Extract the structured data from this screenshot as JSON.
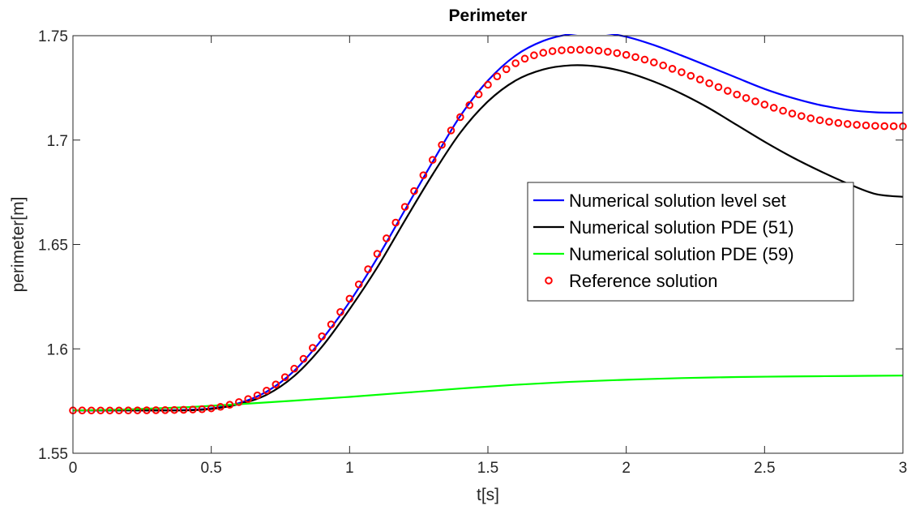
{
  "chart_data": {
    "type": "line",
    "title": "Perimeter",
    "xlabel": "t[s]",
    "ylabel": "perimeter[m]",
    "xlim": [
      0,
      3
    ],
    "ylim": [
      1.55,
      1.75
    ],
    "xticks": [
      0,
      0.5,
      1,
      1.5,
      2,
      2.5,
      3
    ],
    "xtick_labels": [
      "0",
      "0.5",
      "1",
      "1.5",
      "2",
      "2.5",
      "3"
    ],
    "yticks": [
      1.55,
      1.6,
      1.65,
      1.7,
      1.75
    ],
    "ytick_labels": [
      "1.55",
      "1.6",
      "1.65",
      "1.7",
      "1.75"
    ],
    "grid": false,
    "legend_position": "right",
    "series": [
      {
        "name": "Numerical solution level set",
        "color": "#0000ff",
        "style": "line",
        "x": [
          0,
          0.2,
          0.4,
          0.5,
          0.6,
          0.7,
          0.8,
          0.9,
          1.0,
          1.1,
          1.2,
          1.3,
          1.4,
          1.5,
          1.6,
          1.7,
          1.8,
          1.9,
          2.0,
          2.1,
          2.2,
          2.3,
          2.4,
          2.5,
          2.6,
          2.7,
          2.8,
          2.9,
          3.0
        ],
        "y": [
          1.5705,
          1.5705,
          1.5707,
          1.5715,
          1.574,
          1.5795,
          1.5895,
          1.6045,
          1.6225,
          1.6435,
          1.6665,
          1.6895,
          1.7115,
          1.7285,
          1.7405,
          1.7475,
          1.7508,
          1.7515,
          1.7495,
          1.7455,
          1.7405,
          1.7352,
          1.7298,
          1.7245,
          1.7202,
          1.7168,
          1.7145,
          1.7133,
          1.7131
        ]
      },
      {
        "name": "Numerical solution PDE (51)",
        "color": "#000000",
        "style": "line",
        "x": [
          0,
          0.2,
          0.4,
          0.5,
          0.6,
          0.7,
          0.8,
          0.9,
          1.0,
          1.1,
          1.2,
          1.3,
          1.4,
          1.5,
          1.6,
          1.7,
          1.8,
          1.9,
          2.0,
          2.1,
          2.2,
          2.3,
          2.4,
          2.5,
          2.6,
          2.7,
          2.8,
          2.9,
          3.0
        ],
        "y": [
          1.5705,
          1.5705,
          1.5705,
          1.5712,
          1.5735,
          1.578,
          1.587,
          1.601,
          1.619,
          1.639,
          1.6615,
          1.6835,
          1.7035,
          1.7185,
          1.7285,
          1.7338,
          1.7358,
          1.7352,
          1.7325,
          1.728,
          1.7222,
          1.7152,
          1.7072,
          1.6992,
          1.6918,
          1.6852,
          1.6792,
          1.6742,
          1.6728
        ]
      },
      {
        "name": "Numerical solution PDE (59)",
        "color": "#00ff00",
        "style": "line",
        "x": [
          0,
          0.2,
          0.4,
          0.6,
          0.8,
          1.0,
          1.2,
          1.4,
          1.6,
          1.8,
          2.0,
          2.2,
          2.4,
          2.6,
          2.8,
          3.0
        ],
        "y": [
          1.5705,
          1.571,
          1.572,
          1.5735,
          1.5752,
          1.577,
          1.579,
          1.581,
          1.5828,
          1.5842,
          1.5852,
          1.586,
          1.5865,
          1.5868,
          1.587,
          1.5872
        ]
      },
      {
        "name": "Reference solution",
        "color": "#ff0000",
        "style": "markers",
        "x": [
          0,
          0.2,
          0.4,
          0.5,
          0.6,
          0.7,
          0.8,
          0.9,
          1.0,
          1.1,
          1.2,
          1.3,
          1.4,
          1.5,
          1.6,
          1.7,
          1.8,
          1.9,
          2.0,
          2.1,
          2.2,
          2.3,
          2.4,
          2.5,
          2.6,
          2.7,
          2.8,
          2.9,
          3.0
        ],
        "y": [
          1.5705,
          1.5705,
          1.5708,
          1.5715,
          1.5745,
          1.58,
          1.5905,
          1.606,
          1.624,
          1.6455,
          1.668,
          1.6905,
          1.711,
          1.7265,
          1.7368,
          1.7418,
          1.7432,
          1.7428,
          1.7408,
          1.7372,
          1.7325,
          1.7272,
          1.7218,
          1.717,
          1.7127,
          1.7095,
          1.7077,
          1.7068,
          1.7066
        ]
      }
    ]
  }
}
